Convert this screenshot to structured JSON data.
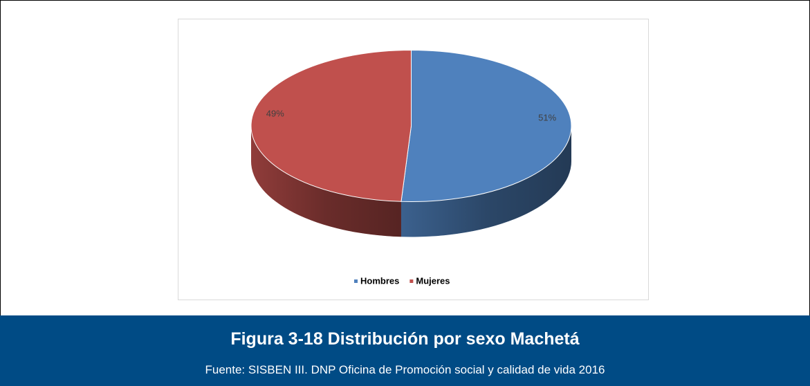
{
  "chart_data": {
    "type": "pie",
    "categories": [
      "Hombres",
      "Mujeres"
    ],
    "values": [
      51,
      49
    ],
    "value_labels": [
      "51%",
      "49%"
    ],
    "colors": [
      "#4f81bd",
      "#c0504d"
    ],
    "legend": "bottom"
  },
  "caption": {
    "title": "Figura 3-18 Distribución por sexo Machetá",
    "source": "Fuente: SISBEN III. DNP Oficina de Promoción social y calidad de vida 2016"
  }
}
